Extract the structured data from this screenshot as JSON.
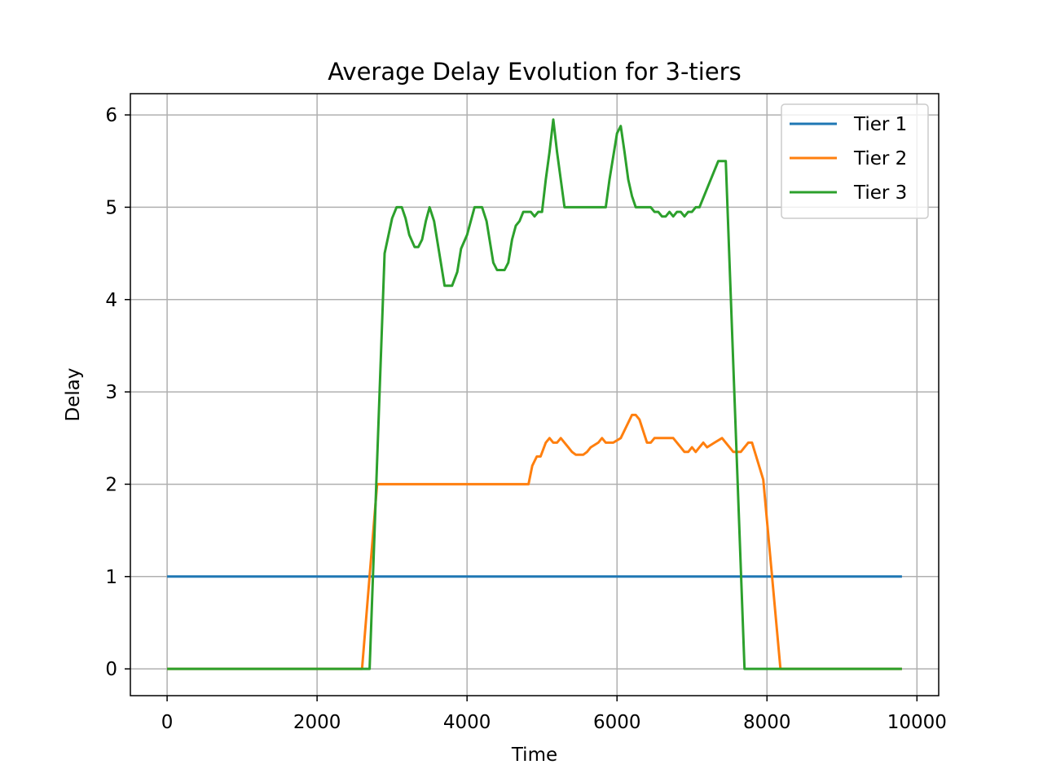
{
  "chart_data": {
    "type": "line",
    "title": "Average Delay Evolution for 3-tiers",
    "xlabel": "Time",
    "ylabel": "Delay",
    "xlim": [
      -490,
      10290
    ],
    "ylim": [
      -0.29,
      6.23
    ],
    "xticks": [
      0,
      2000,
      4000,
      6000,
      8000,
      10000
    ],
    "yticks": [
      0,
      1,
      2,
      3,
      4,
      5,
      6
    ],
    "grid": true,
    "legend_position": "top-right",
    "series": [
      {
        "name": "Tier 1",
        "color": "#1f77b4",
        "points": [
          [
            0,
            1
          ],
          [
            9800,
            1
          ]
        ]
      },
      {
        "name": "Tier 2",
        "color": "#ff7f0e",
        "points": [
          [
            0,
            0
          ],
          [
            2600,
            0
          ],
          [
            2800,
            2
          ],
          [
            4820,
            2
          ],
          [
            4870,
            2.2
          ],
          [
            4930,
            2.3
          ],
          [
            4980,
            2.3
          ],
          [
            5050,
            2.45
          ],
          [
            5100,
            2.5
          ],
          [
            5150,
            2.45
          ],
          [
            5200,
            2.45
          ],
          [
            5250,
            2.5
          ],
          [
            5300,
            2.45
          ],
          [
            5350,
            2.4
          ],
          [
            5400,
            2.35
          ],
          [
            5450,
            2.32
          ],
          [
            5550,
            2.32
          ],
          [
            5600,
            2.35
          ],
          [
            5650,
            2.4
          ],
          [
            5750,
            2.45
          ],
          [
            5800,
            2.5
          ],
          [
            5850,
            2.45
          ],
          [
            5950,
            2.45
          ],
          [
            6050,
            2.5
          ],
          [
            6200,
            2.75
          ],
          [
            6250,
            2.75
          ],
          [
            6300,
            2.7
          ],
          [
            6400,
            2.45
          ],
          [
            6450,
            2.45
          ],
          [
            6500,
            2.5
          ],
          [
            6750,
            2.5
          ],
          [
            6800,
            2.45
          ],
          [
            6850,
            2.4
          ],
          [
            6900,
            2.35
          ],
          [
            6950,
            2.35
          ],
          [
            7000,
            2.4
          ],
          [
            7050,
            2.35
          ],
          [
            7100,
            2.4
          ],
          [
            7150,
            2.45
          ],
          [
            7200,
            2.4
          ],
          [
            7300,
            2.45
          ],
          [
            7400,
            2.5
          ],
          [
            7450,
            2.45
          ],
          [
            7500,
            2.4
          ],
          [
            7550,
            2.35
          ],
          [
            7650,
            2.35
          ],
          [
            7700,
            2.4
          ],
          [
            7750,
            2.45
          ],
          [
            7800,
            2.45
          ],
          [
            7950,
            2.05
          ],
          [
            8180,
            0
          ],
          [
            9800,
            0
          ]
        ]
      },
      {
        "name": "Tier 3",
        "color": "#2ca02c",
        "points": [
          [
            0,
            0
          ],
          [
            2700,
            0
          ],
          [
            2900,
            4.5
          ],
          [
            3000,
            4.88
          ],
          [
            3060,
            5
          ],
          [
            3130,
            5
          ],
          [
            3180,
            4.88
          ],
          [
            3230,
            4.7
          ],
          [
            3300,
            4.57
          ],
          [
            3350,
            4.57
          ],
          [
            3400,
            4.65
          ],
          [
            3450,
            4.85
          ],
          [
            3500,
            5
          ],
          [
            3560,
            4.85
          ],
          [
            3600,
            4.65
          ],
          [
            3650,
            4.4
          ],
          [
            3700,
            4.15
          ],
          [
            3800,
            4.15
          ],
          [
            3870,
            4.3
          ],
          [
            3920,
            4.55
          ],
          [
            4000,
            4.7
          ],
          [
            4050,
            4.85
          ],
          [
            4100,
            5
          ],
          [
            4200,
            5
          ],
          [
            4260,
            4.85
          ],
          [
            4300,
            4.65
          ],
          [
            4350,
            4.4
          ],
          [
            4400,
            4.32
          ],
          [
            4500,
            4.32
          ],
          [
            4550,
            4.4
          ],
          [
            4600,
            4.65
          ],
          [
            4650,
            4.8
          ],
          [
            4700,
            4.85
          ],
          [
            4750,
            4.95
          ],
          [
            4850,
            4.95
          ],
          [
            4900,
            4.9
          ],
          [
            4950,
            4.95
          ],
          [
            5000,
            4.95
          ],
          [
            5050,
            5.3
          ],
          [
            5100,
            5.6
          ],
          [
            5150,
            5.95
          ],
          [
            5200,
            5.6
          ],
          [
            5250,
            5.3
          ],
          [
            5300,
            5
          ],
          [
            5850,
            5
          ],
          [
            5900,
            5.3
          ],
          [
            6000,
            5.8
          ],
          [
            6050,
            5.88
          ],
          [
            6100,
            5.6
          ],
          [
            6150,
            5.3
          ],
          [
            6200,
            5.12
          ],
          [
            6250,
            5
          ],
          [
            6450,
            5
          ],
          [
            6500,
            4.95
          ],
          [
            6550,
            4.95
          ],
          [
            6600,
            4.9
          ],
          [
            6650,
            4.9
          ],
          [
            6700,
            4.95
          ],
          [
            6750,
            4.9
          ],
          [
            6800,
            4.95
          ],
          [
            6850,
            4.95
          ],
          [
            6900,
            4.9
          ],
          [
            6950,
            4.95
          ],
          [
            7000,
            4.95
          ],
          [
            7050,
            5
          ],
          [
            7100,
            5
          ],
          [
            7350,
            5.5
          ],
          [
            7450,
            5.5
          ],
          [
            7700,
            0
          ],
          [
            8200,
            0
          ],
          [
            9800,
            0
          ]
        ]
      }
    ]
  }
}
